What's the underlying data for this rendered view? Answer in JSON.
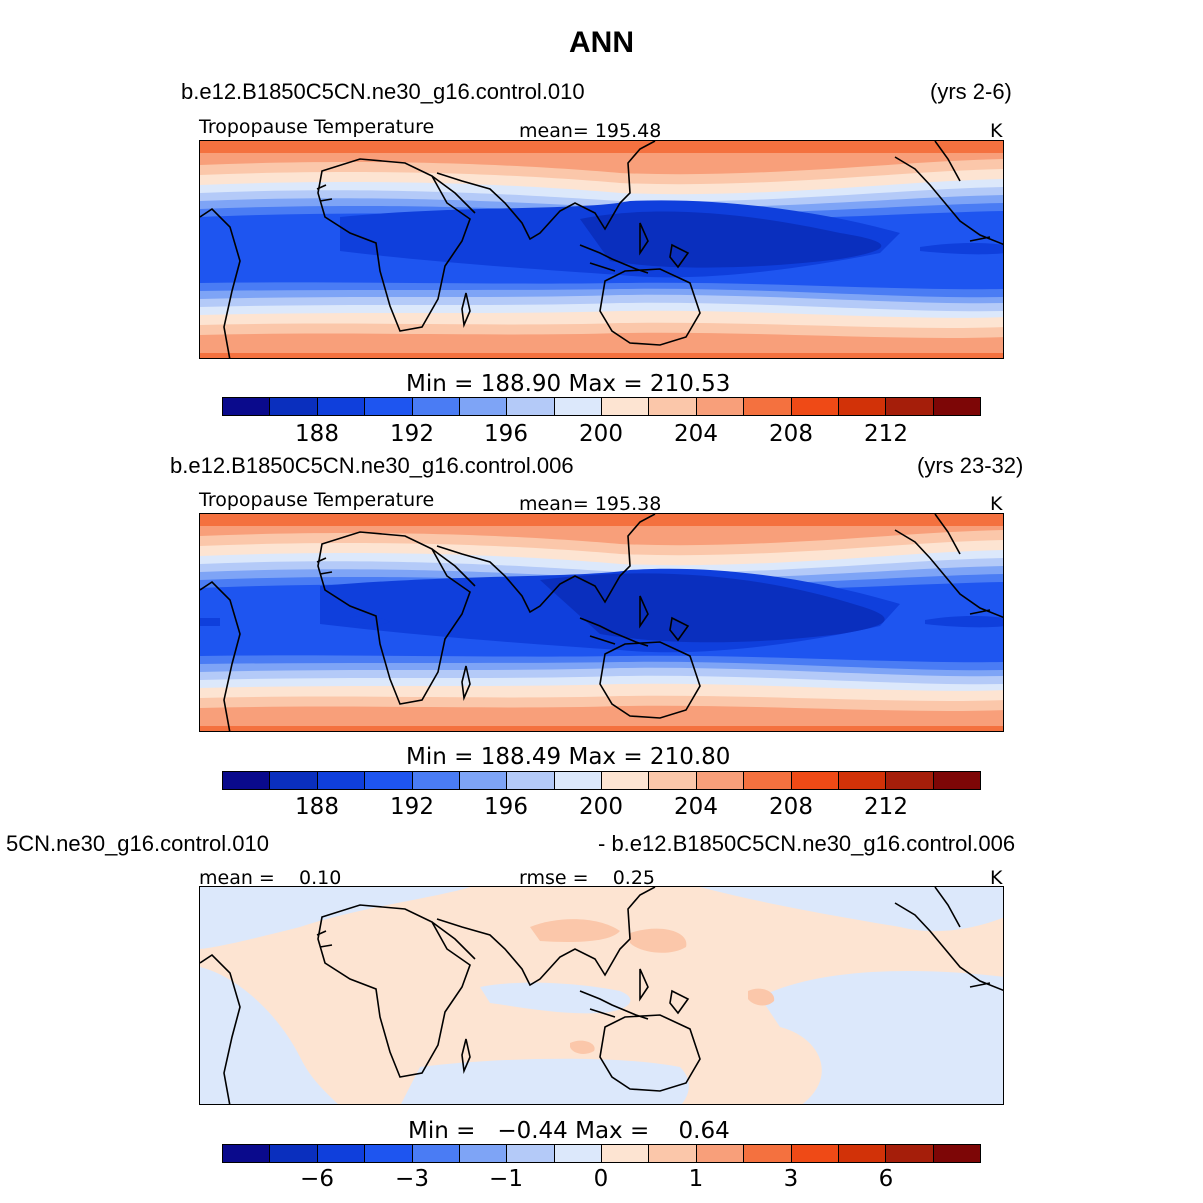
{
  "title": "ANN",
  "panels": [
    {
      "case": "b.e12.B1850C5CN.ne30_g16.control.010",
      "years": "(yrs 2-6)",
      "variable": "Tropopause Temperature",
      "stat": "mean= 195.48",
      "units": "K",
      "minmax": "Min = 188.90 Max = 210.53",
      "ticks": [
        "188",
        "192",
        "196",
        "200",
        "204",
        "208",
        "212"
      ]
    },
    {
      "case": "b.e12.B1850C5CN.ne30_g16.control.006",
      "years": "(yrs 23-32)",
      "variable": "Tropopause Temperature",
      "stat": "mean= 195.38",
      "units": "K",
      "minmax": "Min = 188.49 Max = 210.80",
      "ticks": [
        "188",
        "192",
        "196",
        "200",
        "204",
        "208",
        "212"
      ]
    },
    {
      "case_left": "5CN.ne30_g16.control.010",
      "case_right": "- b.e12.B1850C5CN.ne30_g16.control.006",
      "stat_mean": "mean =    0.10",
      "stat_rmse": "rmse =    0.25",
      "units": "K",
      "minmax": "Min =   −0.44 Max =    0.64",
      "ticks": [
        "−6",
        "−3",
        "−1",
        "0",
        "1",
        "3",
        "6"
      ]
    }
  ],
  "colorbar_colors": [
    "#0a0a8c",
    "#0a2fbe",
    "#0f3fdc",
    "#1e55f0",
    "#4a7cf4",
    "#7ea4f6",
    "#b4caf8",
    "#dce8fb",
    "#fde4d2",
    "#fbc7aa",
    "#f89f7a",
    "#f4713f",
    "#ef4a16",
    "#d23208",
    "#a51e0a",
    "#7d0606"
  ]
}
